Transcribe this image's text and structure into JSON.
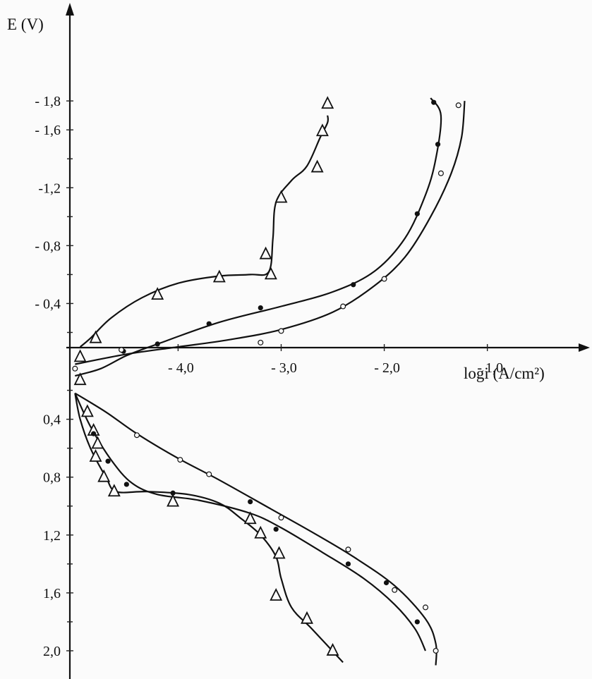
{
  "chart_data": {
    "type": "line",
    "ylabel": "E (V)",
    "xlabel": "logi (A/cm²)",
    "xlim": [
      -5.05,
      -0.06
    ],
    "ylim": [
      2.2,
      -2.02
    ],
    "x_ticks": [
      {
        "value": -4.0,
        "label": "- 4,0"
      },
      {
        "value": -3.0,
        "label": "- 3,0"
      },
      {
        "value": -2.0,
        "label": "- 2,0"
      },
      {
        "value": -1.0,
        "label": "- 1,0"
      }
    ],
    "y_ticks": [
      {
        "value": -1.8,
        "label": "- 1,8"
      },
      {
        "value": -1.6,
        "label": "- 1,6"
      },
      {
        "value": -1.2,
        "label": "-1,2"
      },
      {
        "value": -0.8,
        "label": "- 0,8"
      },
      {
        "value": -0.4,
        "label": "- 0,4"
      },
      {
        "value": 0.4,
        "label": "0,4"
      },
      {
        "value": 0.8,
        "label": "0,8"
      },
      {
        "value": 1.2,
        "label": "1,2"
      },
      {
        "value": 1.6,
        "label": "1,6"
      },
      {
        "value": 2.0,
        "label": "2,0"
      }
    ],
    "y_minor_ticks": [
      -1.4,
      -1.0,
      -0.6,
      -0.2,
      0.2,
      0.6,
      1.0,
      1.4,
      1.8
    ],
    "series": [
      {
        "marker": "open-triangle",
        "cathodic": {
          "curve": [
            [
              -4.95,
              -0.1
            ],
            [
              -4.85,
              -0.16
            ],
            [
              -4.65,
              -0.3
            ],
            [
              -4.35,
              -0.44
            ],
            [
              -4.0,
              -0.54
            ],
            [
              -3.6,
              -0.59
            ],
            [
              -3.3,
              -0.6
            ],
            [
              -3.12,
              -0.62
            ],
            [
              -3.08,
              -0.85
            ],
            [
              -3.05,
              -1.1
            ],
            [
              -2.9,
              -1.25
            ],
            [
              -2.75,
              -1.35
            ],
            [
              -2.62,
              -1.55
            ],
            [
              -2.55,
              -1.65
            ],
            [
              -2.55,
              -1.7
            ]
          ],
          "points": [
            [
              -4.95,
              -0.03
            ],
            [
              -4.8,
              -0.16
            ],
            [
              -4.2,
              -0.46
            ],
            [
              -3.6,
              -0.58
            ],
            [
              -3.15,
              -0.74
            ],
            [
              -3.1,
              -0.6
            ],
            [
              -3.0,
              -1.13
            ],
            [
              -2.65,
              -1.34
            ],
            [
              -2.6,
              -1.59
            ],
            [
              -2.55,
              -1.78
            ]
          ]
        },
        "anodic": {
          "curve": [
            [
              -5.0,
              0.22
            ],
            [
              -4.95,
              0.4
            ],
            [
              -4.85,
              0.6
            ],
            [
              -4.7,
              0.8
            ],
            [
              -4.6,
              0.9
            ],
            [
              -4.3,
              0.9
            ],
            [
              -3.9,
              0.92
            ],
            [
              -3.6,
              0.98
            ],
            [
              -3.4,
              1.08
            ],
            [
              -3.2,
              1.2
            ],
            [
              -3.05,
              1.35
            ],
            [
              -3.0,
              1.5
            ],
            [
              -2.9,
              1.7
            ],
            [
              -2.7,
              1.85
            ],
            [
              -2.4,
              2.08
            ]
          ],
          "points": [
            [
              -4.95,
              0.13
            ],
            [
              -4.88,
              0.35
            ],
            [
              -4.82,
              0.48
            ],
            [
              -4.78,
              0.57
            ],
            [
              -4.8,
              0.66
            ],
            [
              -4.72,
              0.8
            ],
            [
              -4.62,
              0.9
            ],
            [
              -4.05,
              0.97
            ],
            [
              -3.3,
              1.09
            ],
            [
              -3.2,
              1.19
            ],
            [
              -3.02,
              1.33
            ],
            [
              -3.05,
              1.62
            ],
            [
              -2.75,
              1.78
            ],
            [
              -2.5,
              2.0
            ]
          ]
        }
      },
      {
        "marker": "filled-circle",
        "cathodic": {
          "curve": [
            [
              -5.0,
              0.1
            ],
            [
              -4.75,
              0.05
            ],
            [
              -4.5,
              -0.04
            ],
            [
              -4.2,
              -0.12
            ],
            [
              -3.6,
              -0.27
            ],
            [
              -3.0,
              -0.38
            ],
            [
              -2.5,
              -0.48
            ],
            [
              -2.1,
              -0.62
            ],
            [
              -1.8,
              -0.85
            ],
            [
              -1.6,
              -1.15
            ],
            [
              -1.5,
              -1.4
            ],
            [
              -1.45,
              -1.7
            ],
            [
              -1.55,
              -1.82
            ]
          ],
          "points": [
            [
              -4.53,
              -0.07
            ],
            [
              -4.2,
              -0.12
            ],
            [
              -3.7,
              -0.26
            ],
            [
              -3.2,
              -0.37
            ],
            [
              -2.3,
              -0.53
            ],
            [
              -1.68,
              -1.02
            ],
            [
              -1.48,
              -1.5
            ],
            [
              -1.52,
              -1.79
            ]
          ]
        },
        "anodic": {
          "curve": [
            [
              -5.0,
              0.22
            ],
            [
              -4.85,
              0.45
            ],
            [
              -4.65,
              0.68
            ],
            [
              -4.45,
              0.84
            ],
            [
              -4.2,
              0.92
            ],
            [
              -3.8,
              0.96
            ],
            [
              -3.3,
              1.05
            ],
            [
              -3.0,
              1.15
            ],
            [
              -2.6,
              1.32
            ],
            [
              -2.2,
              1.5
            ],
            [
              -1.9,
              1.68
            ],
            [
              -1.7,
              1.85
            ],
            [
              -1.6,
              2.0
            ]
          ],
          "points": [
            [
              -4.82,
              0.5
            ],
            [
              -4.68,
              0.69
            ],
            [
              -4.5,
              0.85
            ],
            [
              -4.05,
              0.91
            ],
            [
              -3.3,
              0.97
            ],
            [
              -3.05,
              1.16
            ],
            [
              -2.35,
              1.4
            ],
            [
              -1.98,
              1.53
            ],
            [
              -1.68,
              1.8
            ]
          ]
        }
      },
      {
        "marker": "open-circle",
        "cathodic": {
          "curve": [
            [
              -5.0,
              0.02
            ],
            [
              -4.5,
              -0.05
            ],
            [
              -4.0,
              -0.1
            ],
            [
              -3.5,
              -0.15
            ],
            [
              -3.0,
              -0.22
            ],
            [
              -2.5,
              -0.34
            ],
            [
              -2.1,
              -0.52
            ],
            [
              -1.8,
              -0.72
            ],
            [
              -1.55,
              -1.0
            ],
            [
              -1.35,
              -1.3
            ],
            [
              -1.25,
              -1.55
            ],
            [
              -1.22,
              -1.8
            ]
          ],
          "points": [
            [
              -5.0,
              0.05
            ],
            [
              -4.55,
              -0.08
            ],
            [
              -3.2,
              -0.13
            ],
            [
              -3.0,
              -0.21
            ],
            [
              -2.4,
              -0.38
            ],
            [
              -2.0,
              -0.57
            ],
            [
              -1.45,
              -1.3
            ],
            [
              -1.28,
              -1.77
            ]
          ]
        },
        "anodic": {
          "curve": [
            [
              -5.0,
              0.22
            ],
            [
              -4.7,
              0.35
            ],
            [
              -4.4,
              0.5
            ],
            [
              -4.0,
              0.67
            ],
            [
              -3.6,
              0.82
            ],
            [
              -3.1,
              1.02
            ],
            [
              -2.7,
              1.18
            ],
            [
              -2.3,
              1.35
            ],
            [
              -1.9,
              1.55
            ],
            [
              -1.6,
              1.78
            ],
            [
              -1.5,
              1.95
            ],
            [
              -1.5,
              2.1
            ]
          ],
          "points": [
            [
              -4.4,
              0.51
            ],
            [
              -3.98,
              0.68
            ],
            [
              -3.7,
              0.78
            ],
            [
              -3.0,
              1.08
            ],
            [
              -2.35,
              1.3
            ],
            [
              -1.9,
              1.58
            ],
            [
              -1.6,
              1.7
            ],
            [
              -1.5,
              2.0
            ]
          ]
        }
      }
    ]
  }
}
